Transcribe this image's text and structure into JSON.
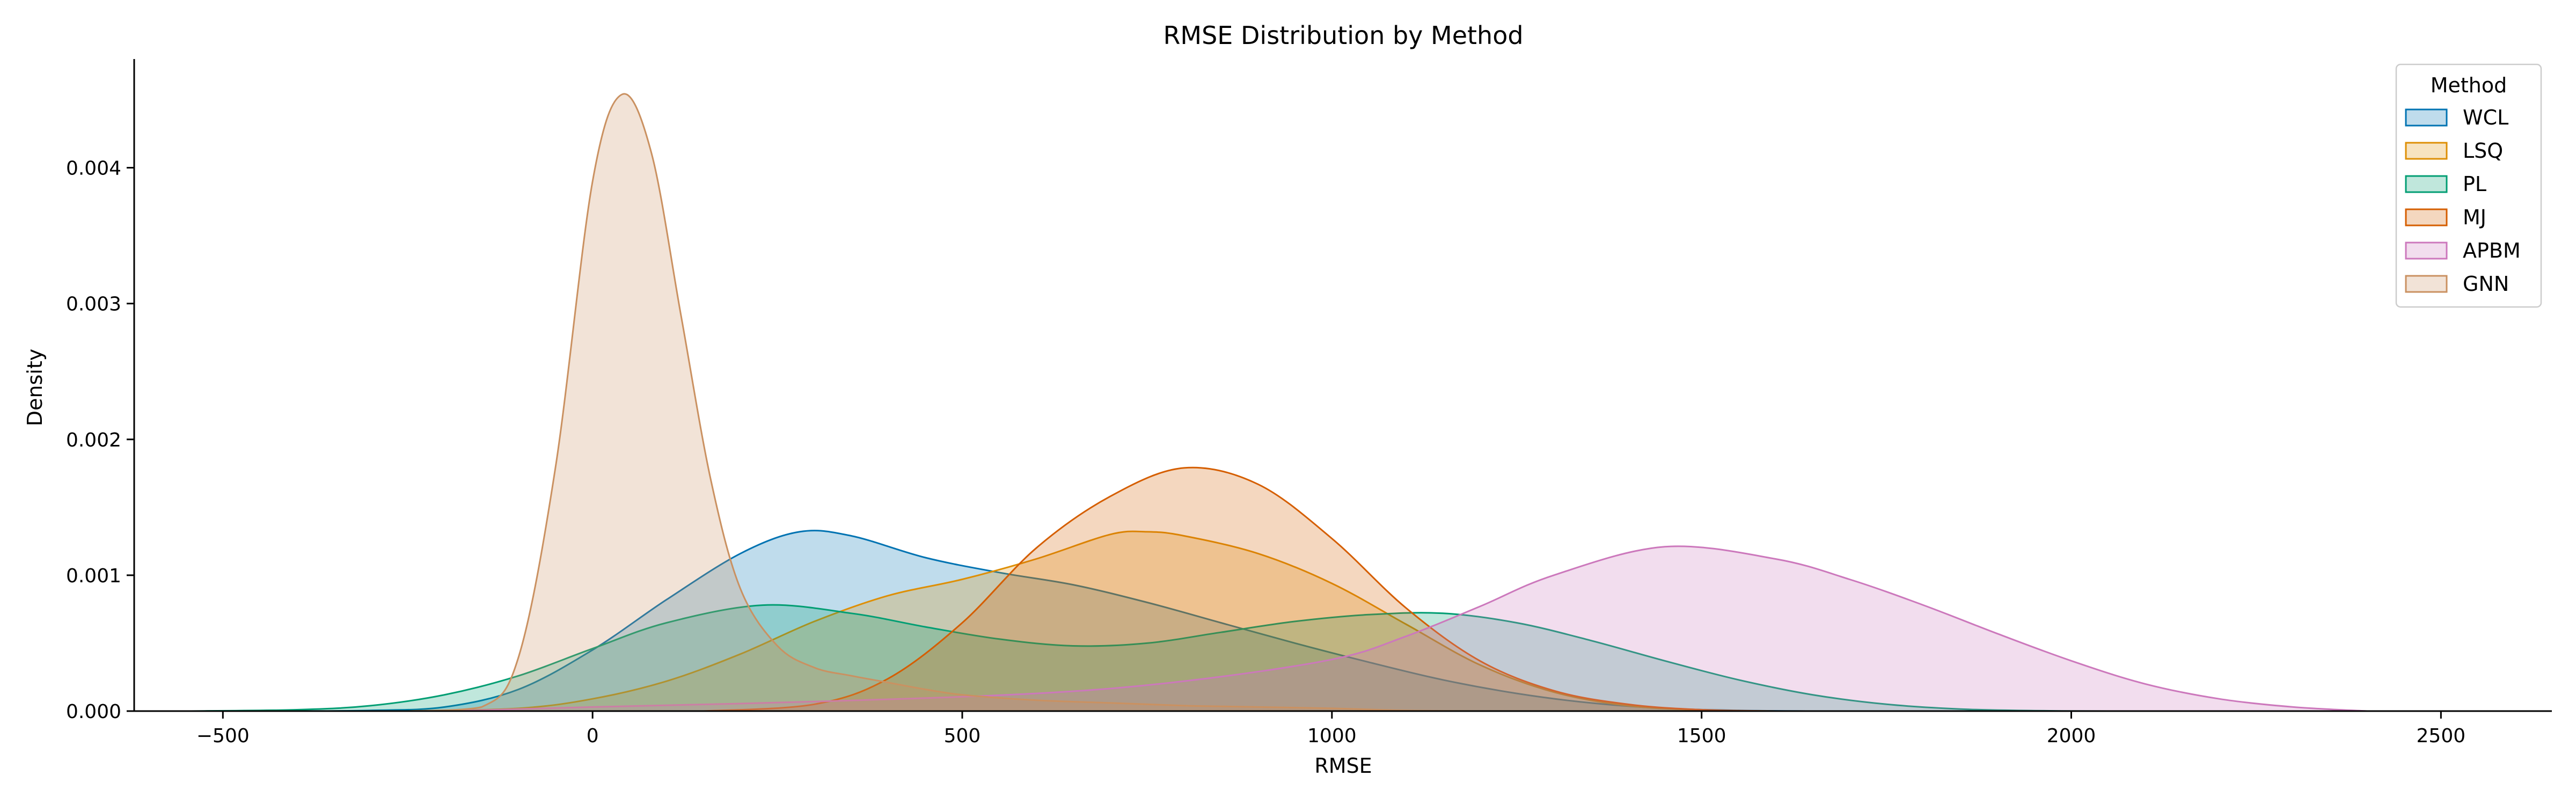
{
  "chart_data": {
    "type": "area",
    "title": "RMSE Distribution by Method",
    "xlabel": "RMSE",
    "ylabel": "Density",
    "xlim": [
      -620,
      2650
    ],
    "ylim": [
      0,
      0.0048
    ],
    "x_ticks": [
      -500,
      0,
      500,
      1000,
      1500,
      2000,
      2500
    ],
    "y_ticks": [
      0.0,
      0.001,
      0.002,
      0.003,
      0.004
    ],
    "x_tick_labels": [
      "−500",
      "0",
      "500",
      "1000",
      "1500",
      "2000",
      "2500"
    ],
    "y_tick_labels": [
      "0.000",
      "0.001",
      "0.002",
      "0.003",
      "0.004"
    ],
    "grid": false,
    "legend": {
      "title": "Method",
      "placement": "top-right"
    },
    "series": [
      {
        "name": "WCL",
        "color": "#0173b2",
        "x": [
          -400,
          -300,
          -200,
          -100,
          0,
          100,
          200,
          280,
          350,
          450,
          550,
          650,
          750,
          850,
          950,
          1050,
          1150,
          1250,
          1350,
          1450,
          1550,
          1650
        ],
        "y": [
          0,
          5e-06,
          3e-05,
          0.00016,
          0.00045,
          0.00082,
          0.00116,
          0.00132,
          0.00129,
          0.00113,
          0.00102,
          0.00093,
          0.0008,
          0.00065,
          0.0005,
          0.00036,
          0.00023,
          0.00013,
          6e-05,
          2e-05,
          5e-06,
          0
        ]
      },
      {
        "name": "LSQ",
        "color": "#de8f05",
        "x": [
          -250,
          -100,
          0,
          100,
          200,
          300,
          400,
          500,
          600,
          700,
          750,
          800,
          900,
          1000,
          1100,
          1200,
          1300,
          1400,
          1500,
          1600
        ],
        "y": [
          0,
          2e-05,
          9e-05,
          0.00022,
          0.00042,
          0.00066,
          0.00085,
          0.00097,
          0.00112,
          0.0013,
          0.00132,
          0.00129,
          0.00116,
          0.00094,
          0.00064,
          0.00034,
          0.00014,
          4e-05,
          8e-06,
          0
        ]
      },
      {
        "name": "PL",
        "color": "#029e73",
        "x": [
          -550,
          -400,
          -300,
          -200,
          -100,
          0,
          100,
          230,
          350,
          450,
          550,
          650,
          750,
          850,
          950,
          1050,
          1150,
          1250,
          1350,
          1450,
          1550,
          1650,
          1750,
          1850,
          1950,
          2050
        ],
        "y": [
          0,
          1e-05,
          4e-05,
          0.00012,
          0.00026,
          0.00046,
          0.00065,
          0.00078,
          0.00072,
          0.00062,
          0.00053,
          0.00048,
          0.0005,
          0.00058,
          0.00066,
          0.00071,
          0.00072,
          0.00065,
          0.00052,
          0.00037,
          0.00023,
          0.00012,
          5e-05,
          1.5e-05,
          3e-06,
          0
        ]
      },
      {
        "name": "MJ",
        "color": "#d55e00",
        "x": [
          150,
          300,
          400,
          500,
          600,
          700,
          800,
          900,
          1000,
          1100,
          1200,
          1300,
          1400,
          1500,
          1600
        ],
        "y": [
          0,
          5e-05,
          0.00024,
          0.00065,
          0.0012,
          0.00158,
          0.00179,
          0.00167,
          0.00127,
          0.00076,
          0.00037,
          0.00015,
          5e-05,
          1e-05,
          0
        ]
      },
      {
        "name": "APBM",
        "color": "#cc78bc",
        "x": [
          -200,
          0,
          300,
          600,
          800,
          1000,
          1100,
          1200,
          1300,
          1450,
          1600,
          1700,
          1800,
          1900,
          2000,
          2100,
          2200,
          2300,
          2400
        ],
        "y": [
          0,
          3e-05,
          7e-05,
          0.00013,
          0.00022,
          0.00038,
          0.00055,
          0.00077,
          0.001,
          0.00121,
          0.00112,
          0.00097,
          0.00078,
          0.00057,
          0.00037,
          0.0002,
          9e-05,
          3e-05,
          0
        ]
      },
      {
        "name": "GNN",
        "color": "#ca9161",
        "x": [
          -250,
          -150,
          -100,
          -50,
          0,
          40,
          80,
          120,
          160,
          200,
          250,
          300,
          350,
          400,
          450,
          500,
          600,
          700,
          800,
          900,
          1000,
          1100,
          1200
        ],
        "y": [
          0,
          3e-05,
          0.0004,
          0.0018,
          0.0039,
          0.00454,
          0.0041,
          0.0029,
          0.0017,
          0.0009,
          0.00048,
          0.00032,
          0.00026,
          0.00021,
          0.00016,
          0.00012,
          8e-05,
          6e-05,
          4e-05,
          3e-05,
          2e-05,
          5e-06,
          0
        ]
      }
    ]
  }
}
